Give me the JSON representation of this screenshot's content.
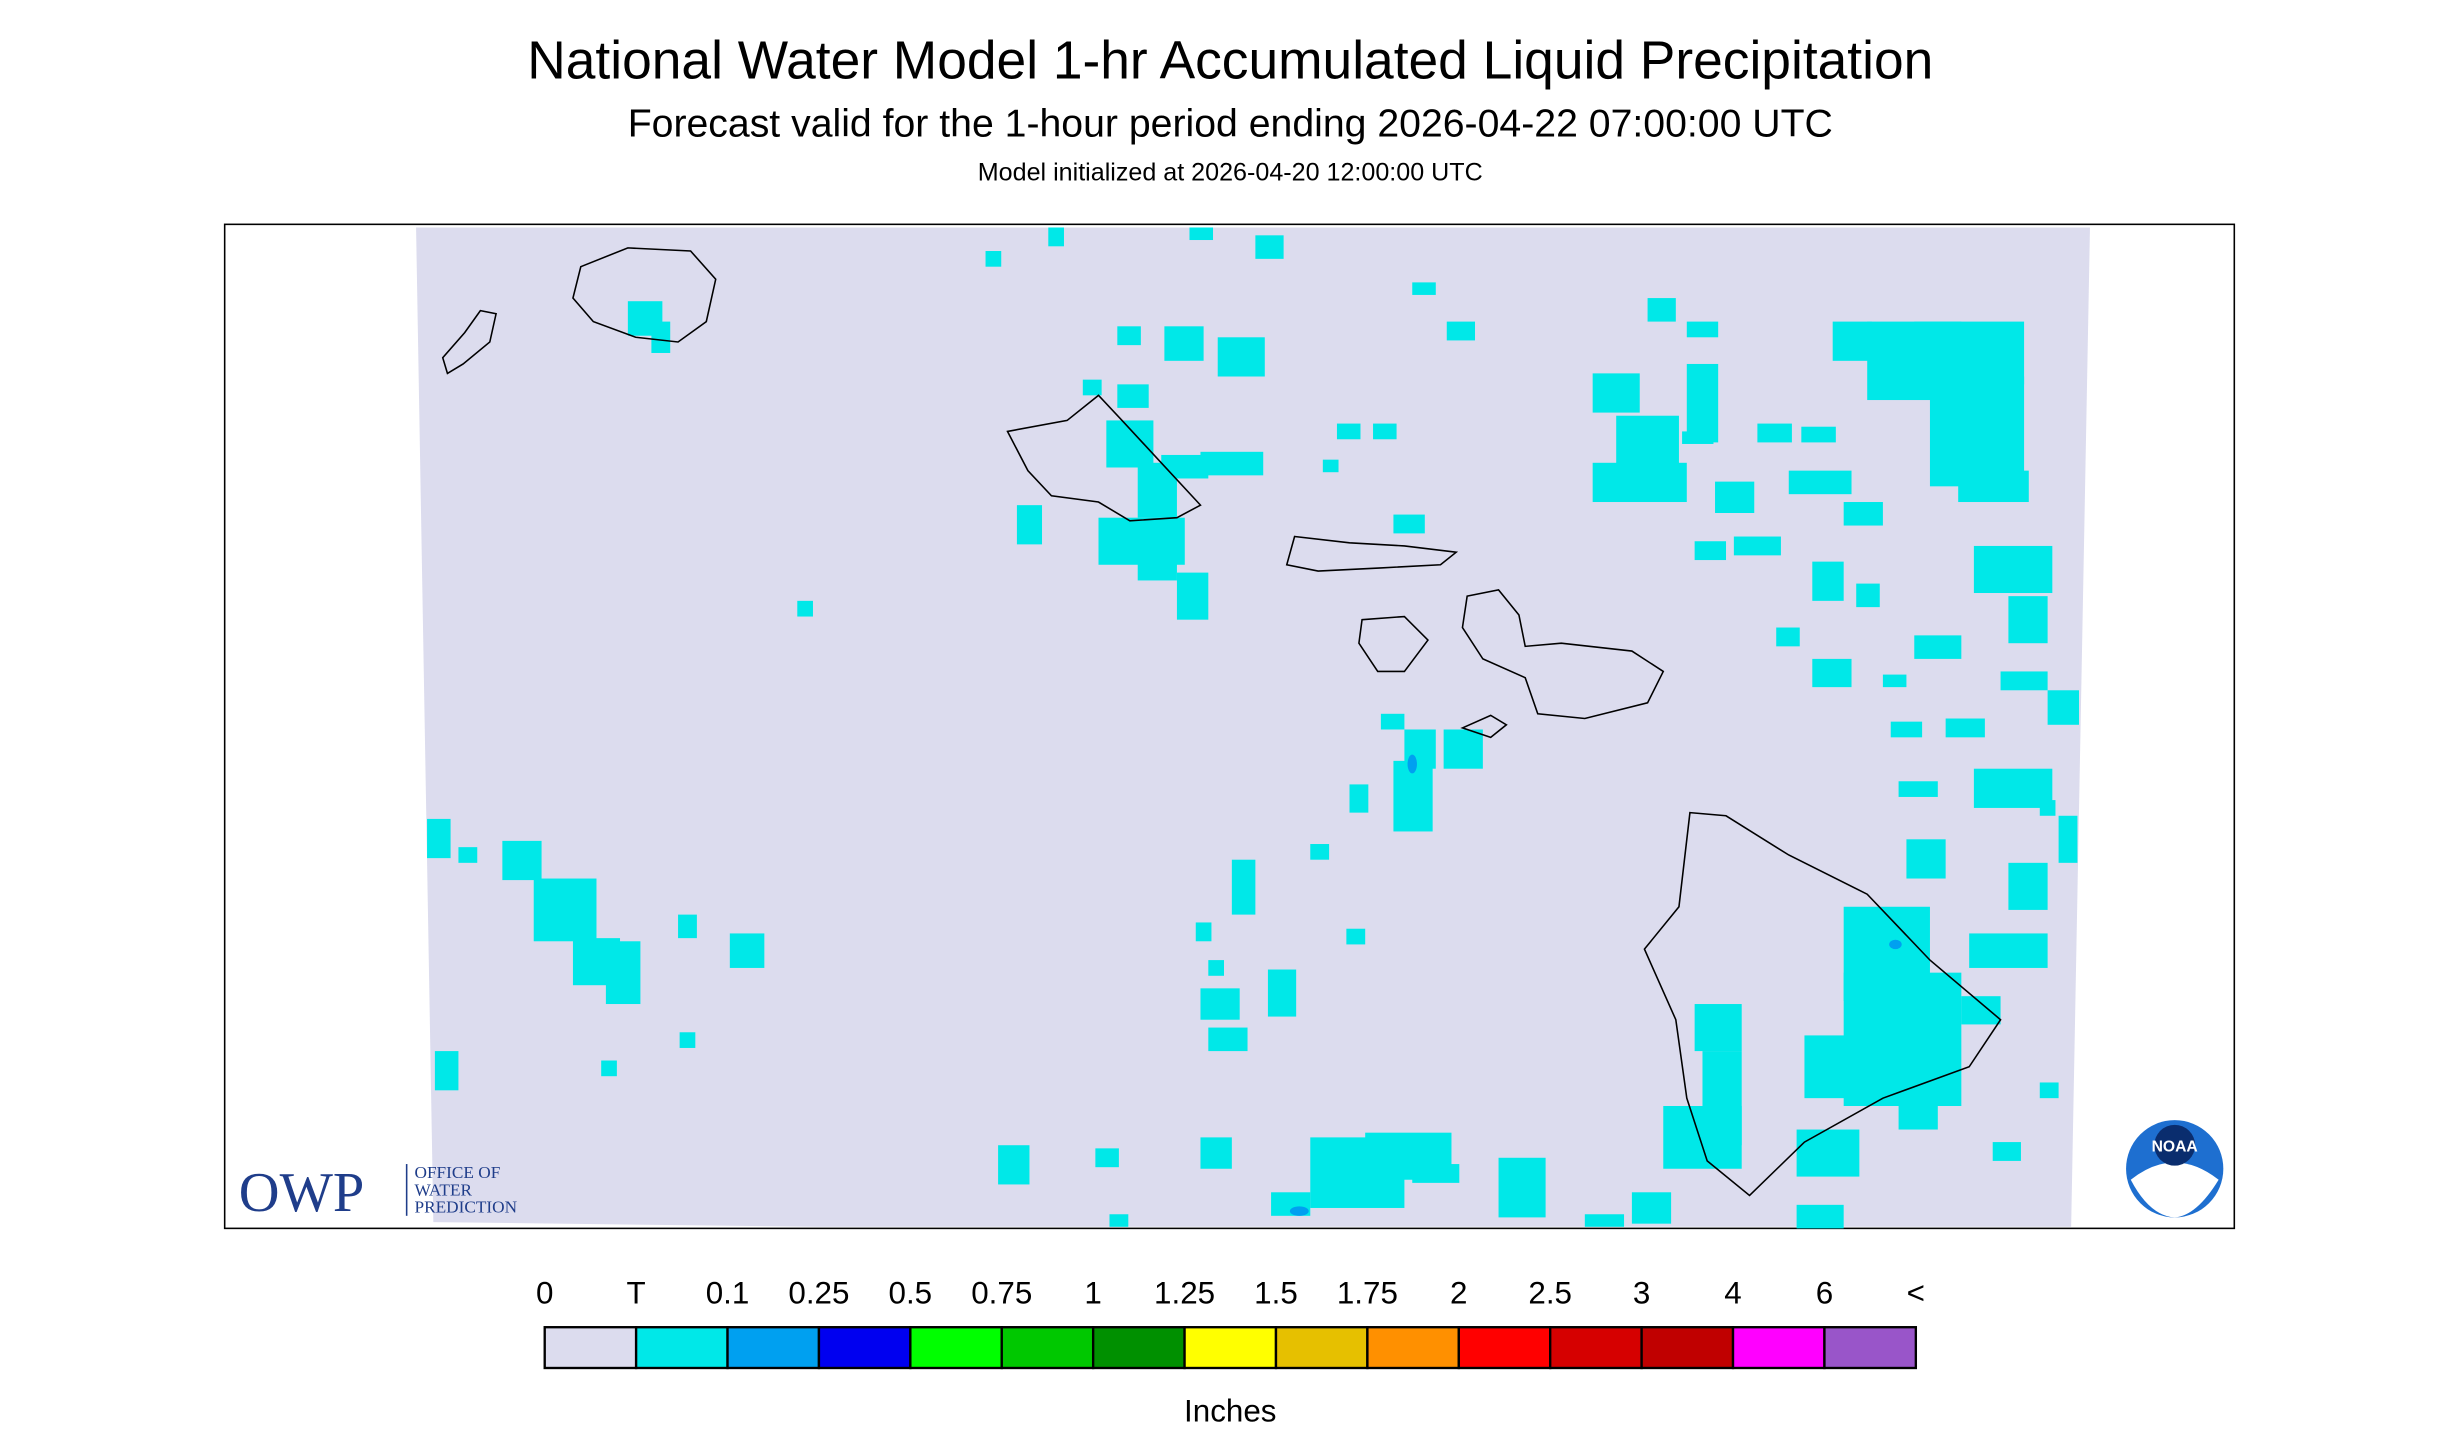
{
  "header": {
    "title": "National Water Model 1-hr Accumulated Liquid Precipitation",
    "subtitle": "Forecast valid for the 1-hour period ending 2026-04-22 07:00:00 UTC",
    "initialized": "Model initialized at 2026-04-20 12:00:00 UTC"
  },
  "legend": {
    "labels": [
      "0",
      "T",
      "0.1",
      "0.25",
      "0.5",
      "0.75",
      "1",
      "1.25",
      "1.5",
      "1.75",
      "2",
      "2.5",
      "3",
      "4",
      "6",
      "<"
    ],
    "colors": [
      "#dcdcee",
      "#00e8e8",
      "#00a0f0",
      "#0000f0",
      "#00ff00",
      "#00c800",
      "#009000",
      "#ffff00",
      "#e6c000",
      "#ff9000",
      "#ff0000",
      "#d60000",
      "#c00000",
      "#ff00ff",
      "#9955c9"
    ],
    "unit": "Inches"
  },
  "logos": {
    "owp": "OWP",
    "owp_name": [
      "OFFICE OF",
      "WATER",
      "PREDICTION"
    ],
    "noaa": "NOAA"
  }
}
